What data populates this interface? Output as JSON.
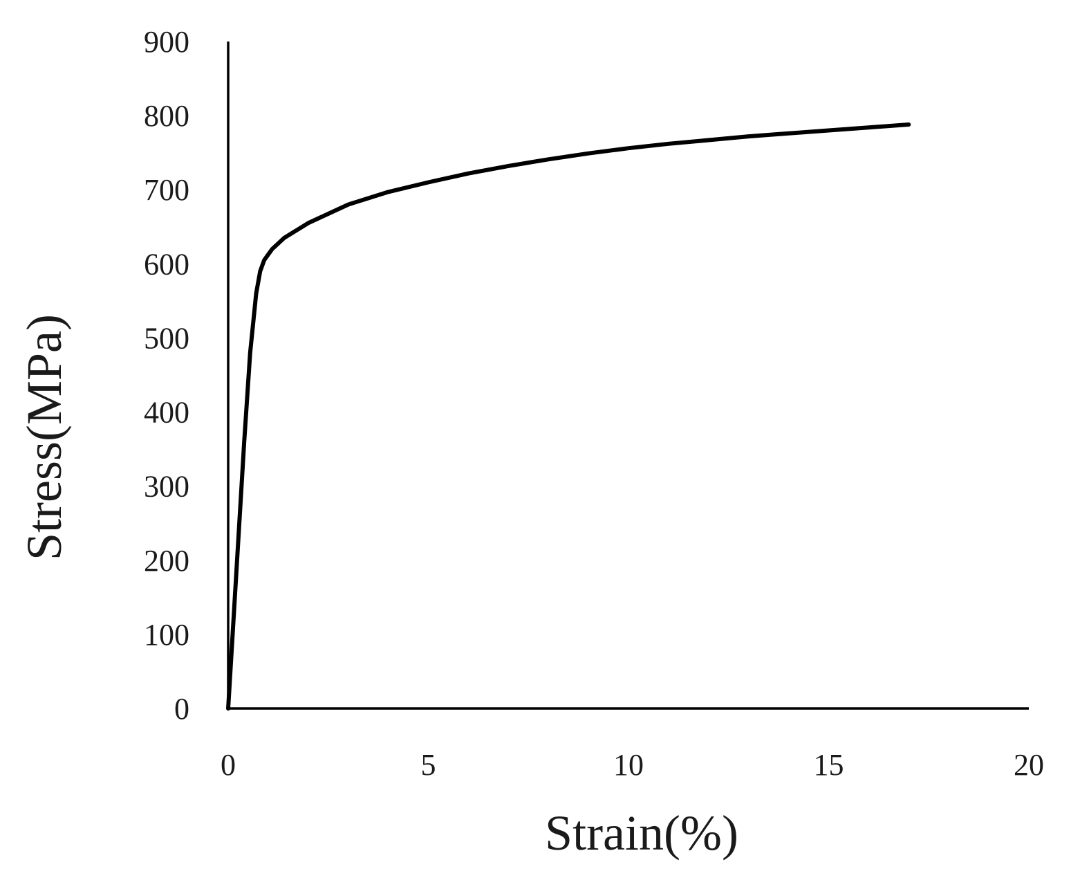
{
  "chart_data": {
    "type": "line",
    "title": "",
    "xlabel": "Strain(%)",
    "ylabel": "Stress(MPa)",
    "xlim": [
      0,
      20
    ],
    "ylim": [
      0,
      900
    ],
    "xticks": [
      0,
      5,
      10,
      15,
      20
    ],
    "yticks": [
      0,
      100,
      200,
      300,
      400,
      500,
      600,
      700,
      800,
      900
    ],
    "grid": false,
    "legend": "none",
    "series": [
      {
        "color": "#000000",
        "x": [
          0,
          0.2,
          0.4,
          0.55,
          0.7,
          0.8,
          0.9,
          1.1,
          1.4,
          2.0,
          3.0,
          4.0,
          5.0,
          6.0,
          7.0,
          8.0,
          9.0,
          10.0,
          11.0,
          12.0,
          13.0,
          14.0,
          15.0,
          16.0,
          17.0
        ],
        "y": [
          0,
          180,
          360,
          480,
          560,
          590,
          605,
          620,
          635,
          655,
          680,
          697,
          710,
          722,
          732,
          741,
          749,
          756,
          762,
          767,
          772,
          776,
          780,
          784,
          788
        ]
      }
    ]
  }
}
